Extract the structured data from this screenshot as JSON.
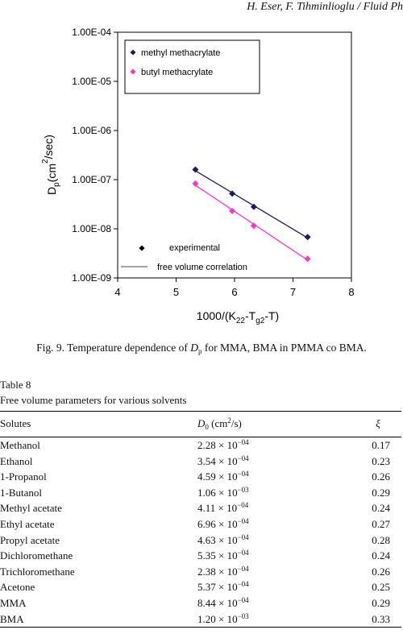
{
  "running_head": "H. Eser, F. Tihminlioglu / Fluid Ph",
  "figure": {
    "caption_prefix": "Fig. 9.  Temperature dependence of ",
    "caption_var": "D",
    "caption_var_sub": "p",
    "caption_suffix": " for MMA, BMA in PMMA co BMA."
  },
  "chart_data": {
    "type": "scatter",
    "xlabel_main": "1000/(K",
    "xlabel_sub1": "22",
    "xlabel_mid": "-T",
    "xlabel_sub2": "g2",
    "xlabel_end": "-T)",
    "ylabel_main": "D",
    "ylabel_sub": "p",
    "ylabel_units_open": "(cm",
    "ylabel_units_sup": "2",
    "ylabel_units_close": "/sec)",
    "xlim": [
      4,
      8
    ],
    "ylim": [
      1e-09,
      0.0001
    ],
    "yscale": "log",
    "xticks": [
      "4",
      "5",
      "6",
      "7",
      "8"
    ],
    "yticks": [
      "1.00E-09",
      "1.00E-08",
      "1.00E-07",
      "1.00E-06",
      "1.00E-05",
      "1.00E-04"
    ],
    "series": [
      {
        "name": "methyl methacrylate",
        "color": "#1a1a6e",
        "x": [
          5.33,
          5.96,
          6.33,
          7.25
        ],
        "y": [
          1.6e-07,
          5.2e-08,
          2.8e-08,
          6.8e-09
        ]
      },
      {
        "name": "butyl methacrylate",
        "color": "#ff33cc",
        "x": [
          5.33,
          5.96,
          6.33,
          7.25
        ],
        "y": [
          8.3e-08,
          2.3e-08,
          1.15e-08,
          2.45e-09
        ]
      }
    ],
    "legend_placement": "top-left",
    "annotation_experimental": "experimental",
    "annotation_fit": "free volume correlation"
  },
  "table": {
    "label": "Table 8",
    "title": "Free volume parameters for various solvents",
    "col_solutes": "Solutes",
    "col_d0": "D",
    "col_d0_sub": "0",
    "col_d0_units": " (cm",
    "col_d0_sup": "2",
    "col_d0_close": "/s)",
    "col_xi": "ξ",
    "times": " × 10",
    "rows": [
      {
        "solute": "Methanol",
        "d0_mant": "2.28",
        "d0_exp": "−04",
        "xi": "0.17"
      },
      {
        "solute": "Ethanol",
        "d0_mant": "3.54",
        "d0_exp": "−04",
        "xi": "0.23"
      },
      {
        "solute": "1-Propanol",
        "d0_mant": "4.59",
        "d0_exp": "−04",
        "xi": "0.26"
      },
      {
        "solute": "1-Butanol",
        "d0_mant": "1.06",
        "d0_exp": "−03",
        "xi": "0.29"
      },
      {
        "solute": "Methyl acetate",
        "d0_mant": "4.11",
        "d0_exp": "−04",
        "xi": "0.24"
      },
      {
        "solute": "Ethyl acetate",
        "d0_mant": "6.96",
        "d0_exp": "−04",
        "xi": "0.27"
      },
      {
        "solute": "Propyl acetate",
        "d0_mant": "4.63",
        "d0_exp": "−04",
        "xi": "0.28"
      },
      {
        "solute": "Dichloromethane",
        "d0_mant": "5.35",
        "d0_exp": "−04",
        "xi": "0.24"
      },
      {
        "solute": "Trichloromethane",
        "d0_mant": "2.38",
        "d0_exp": "−04",
        "xi": "0.26"
      },
      {
        "solute": "Acetone",
        "d0_mant": "5.37",
        "d0_exp": "−04",
        "xi": "0.25"
      },
      {
        "solute": "MMA",
        "d0_mant": "8.44",
        "d0_exp": "−04",
        "xi": "0.29"
      },
      {
        "solute": "BMA",
        "d0_mant": "1.20",
        "d0_exp": "−03",
        "xi": "0.33"
      }
    ]
  }
}
